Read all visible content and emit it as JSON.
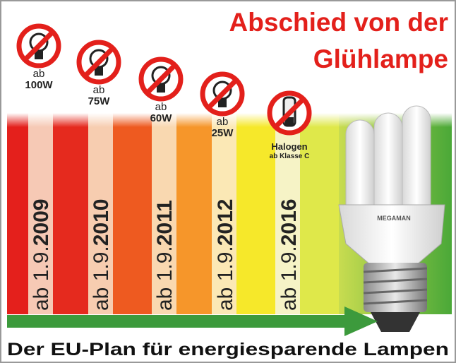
{
  "title": {
    "line1": "Abschied von der",
    "line2": "Glühlampe"
  },
  "stages": [
    {
      "label_top": "ab",
      "label_bottom": "100W",
      "date_prefix": "ab 1.9.",
      "year": "2009"
    },
    {
      "label_top": "ab",
      "label_bottom": "75W",
      "date_prefix": "ab 1.9.",
      "year": "2010"
    },
    {
      "label_top": "ab",
      "label_bottom": "60W",
      "date_prefix": "ab 1.9.",
      "year": "2011"
    },
    {
      "label_top": "ab",
      "label_bottom": "25W",
      "date_prefix": "ab 1.9.",
      "year": "2012"
    },
    {
      "label_top": "Halogen",
      "label_bottom": "ab Klasse C",
      "date_prefix": "ab 1.9.",
      "year": "2016"
    }
  ],
  "bulb": {
    "brand": "MEGAMAN"
  },
  "footer": "Der EU-Plan für energiesparende Lampen"
}
